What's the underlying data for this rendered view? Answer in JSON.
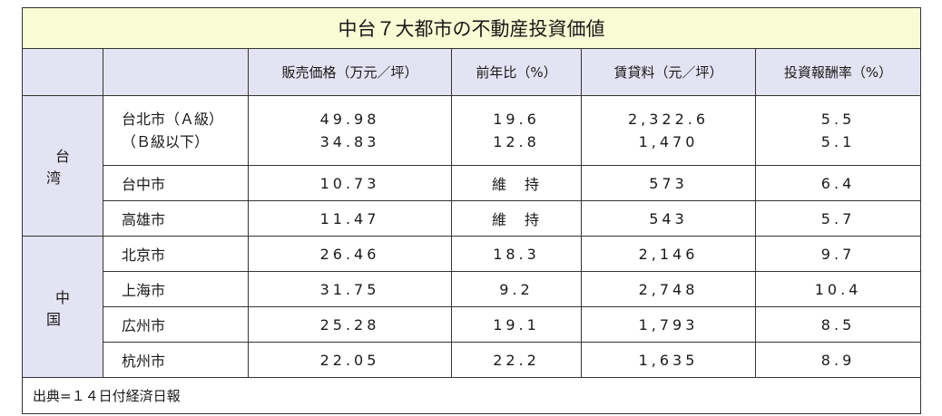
{
  "title": "中台７大都市の不動産投資価値",
  "headers": [
    "",
    "",
    "販売価格（万元／坪）",
    "前年比（%）",
    "賃貸料（元／坪）",
    "投資報酬率（%）"
  ],
  "regions": {
    "taiwan": "台　湾",
    "china": "中　国"
  },
  "rows": {
    "taipei": {
      "city_line1": "台北市（Ａ級）",
      "city_line2": "（Ｂ級以下）",
      "price_a": "49.98",
      "price_b": "34.83",
      "yoy_a": "19.6",
      "yoy_b": "12.8",
      "rent_a": "2,322.6",
      "rent_b": "1,470",
      "roi_a": "5.5",
      "roi_b": "5.1"
    },
    "taichung": {
      "city": "台中市",
      "price": "10.73",
      "yoy": "維　持",
      "rent": "573",
      "roi": "6.4"
    },
    "kaohsiung": {
      "city": "高雄市",
      "price": "11.47",
      "yoy": "維　持",
      "rent": "543",
      "roi": "5.7"
    },
    "beijing": {
      "city": "北京市",
      "price": "26.46",
      "yoy": "18.3",
      "rent": "2,146",
      "roi": "9.7"
    },
    "shanghai": {
      "city": "上海市",
      "price": "31.75",
      "yoy": "9.2",
      "rent": "2,748",
      "roi": "10.4"
    },
    "guangzhou": {
      "city": "広州市",
      "price": "25.28",
      "yoy": "19.1",
      "rent": "1,793",
      "roi": "8.5"
    },
    "hangzhou": {
      "city": "杭州市",
      "price": "22.05",
      "yoy": "22.2",
      "rent": "1,635",
      "roi": "8.9"
    }
  },
  "source": "出典=１４日付経済日報",
  "colors": {
    "title_bg": "#f8fbd3",
    "header_bg": "#e4e3f3",
    "border": "#333333"
  }
}
